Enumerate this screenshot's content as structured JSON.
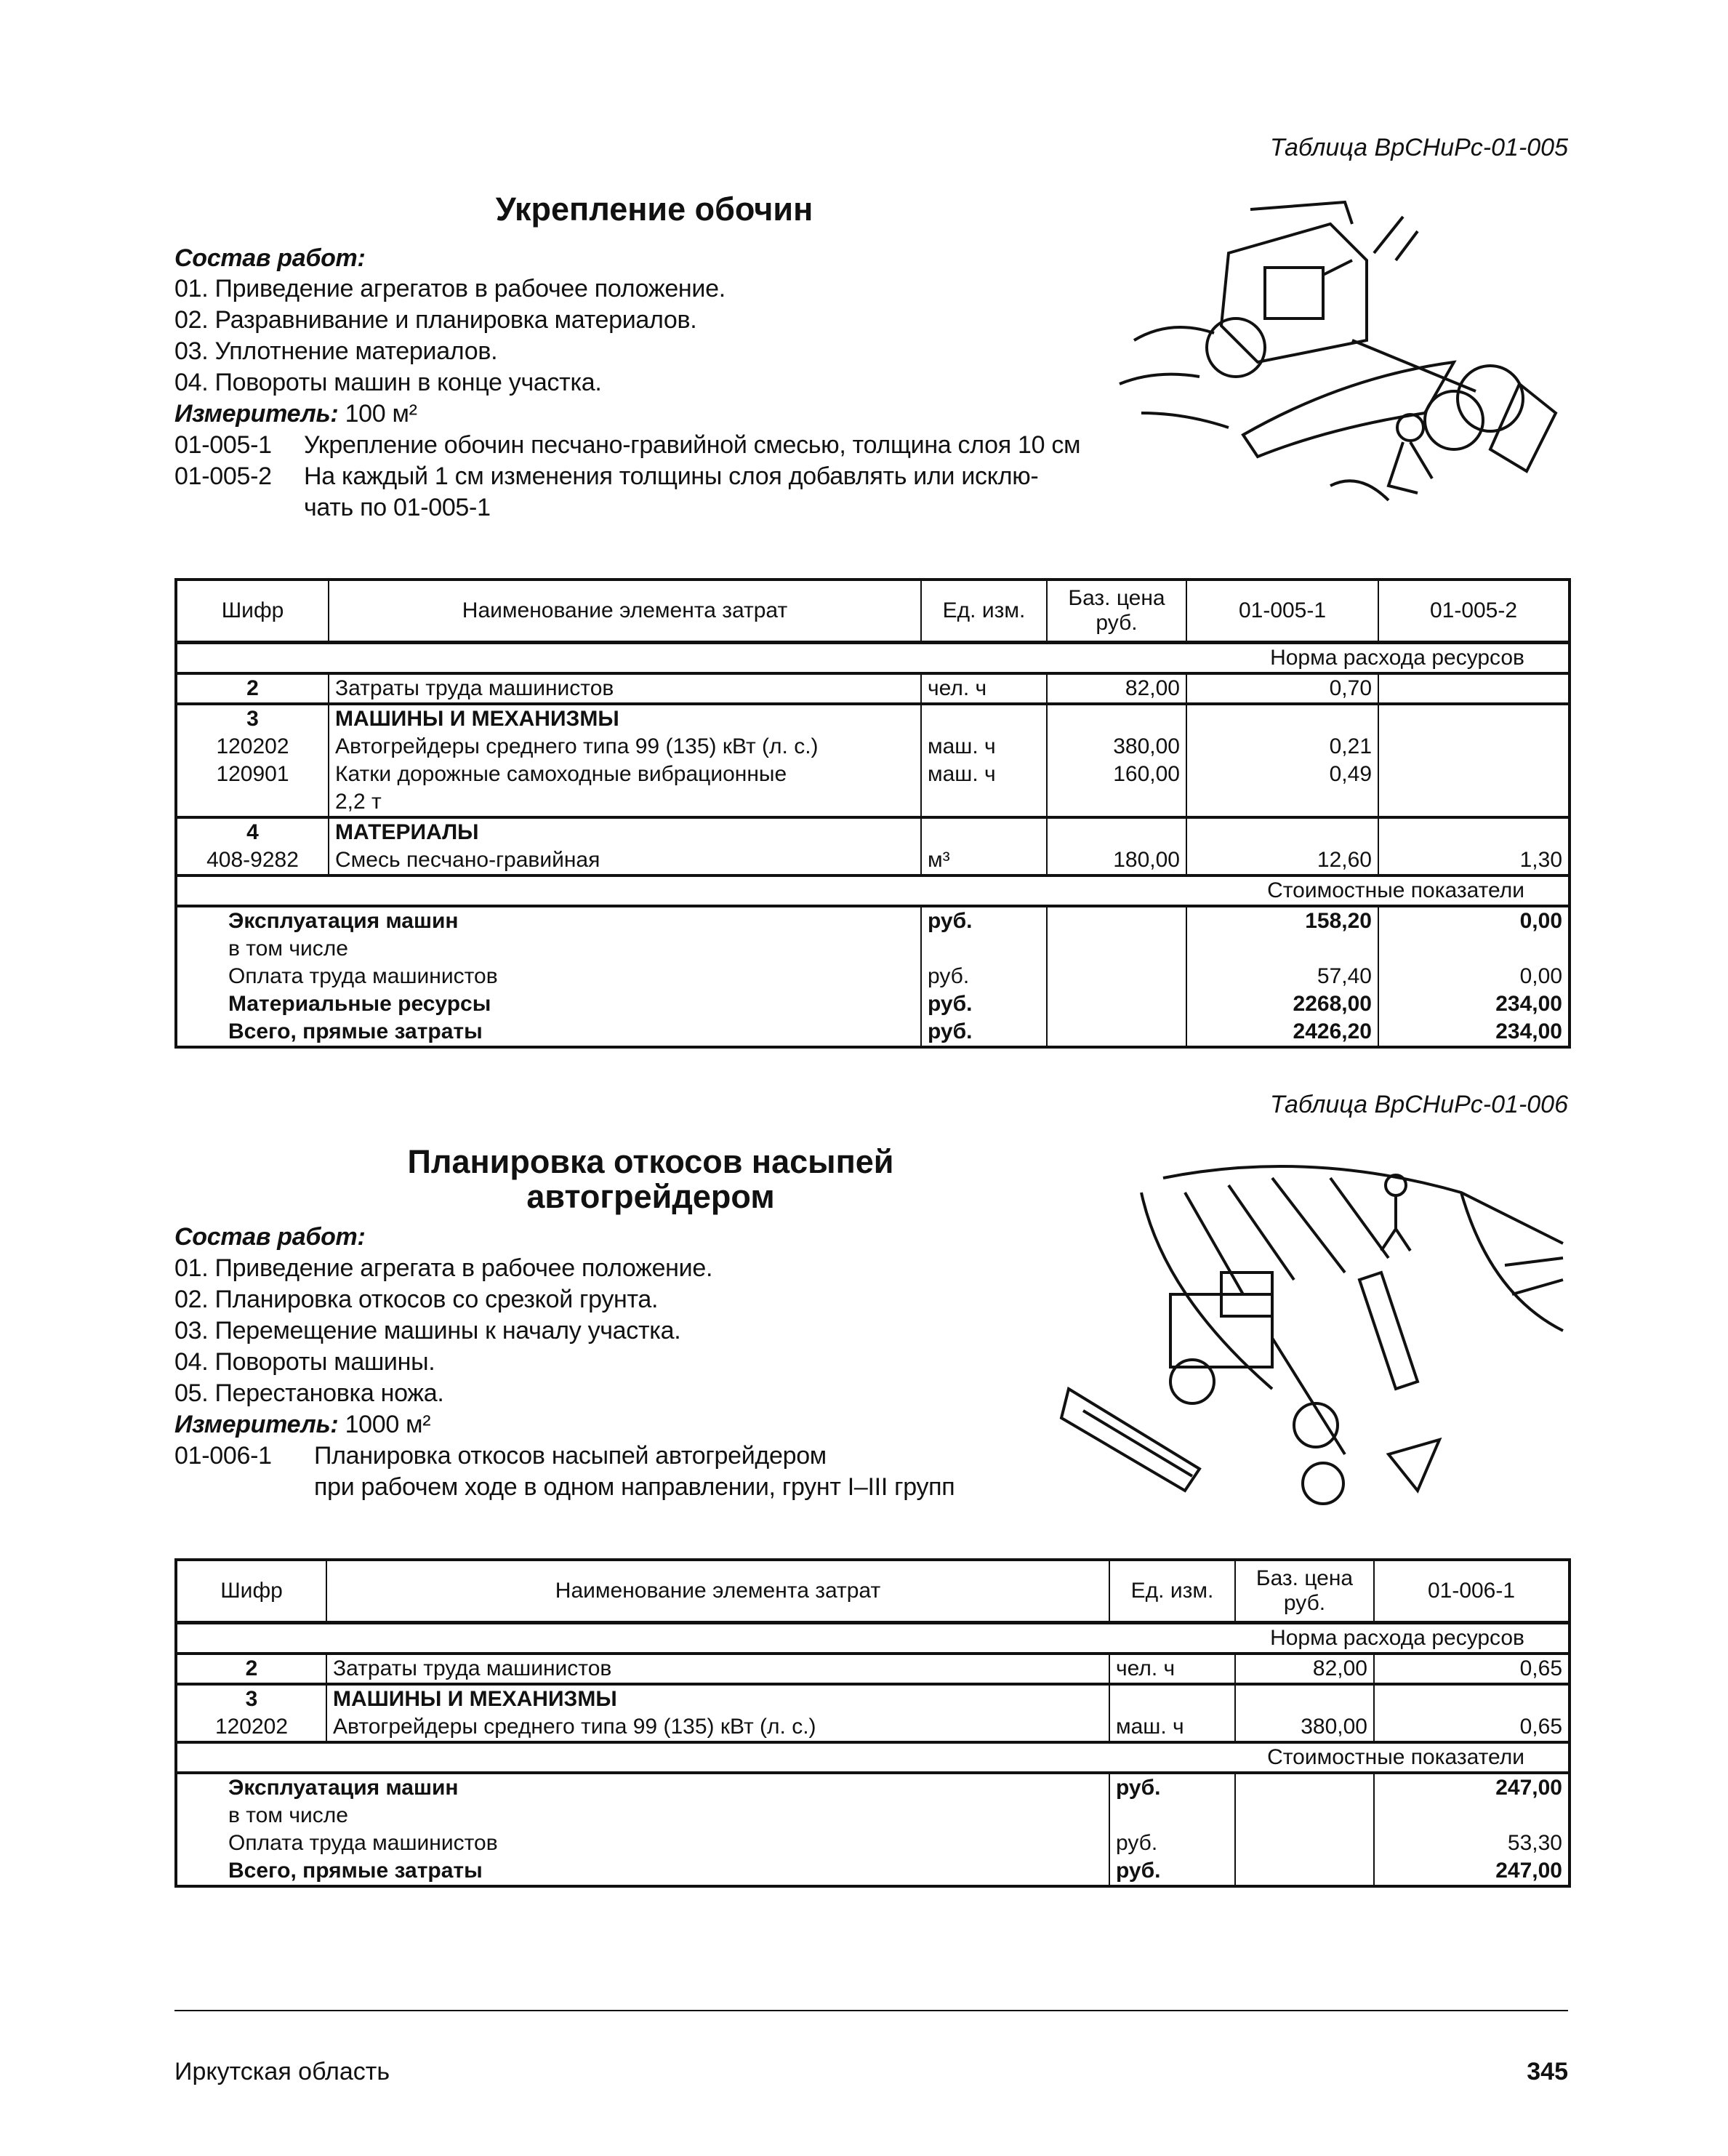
{
  "section1": {
    "table_ref": "Таблица ВрСНиРс-01-005",
    "title": "Укрепление обочин",
    "work_label": "Состав работ:",
    "works": [
      "01. Приведение агрегатов в рабочее положение.",
      "02. Разравнивание и планировка материалов.",
      "03. Уплотнение материалов.",
      "04. Повороты машин в конце участка."
    ],
    "meter_label": "Измеритель:",
    "meter_value": " 100 м²",
    "items": [
      {
        "code": "01-005-1",
        "text": "Укрепление обочин песчано-гравийной смесью, толщина слоя 10 см"
      },
      {
        "code": "01-005-2",
        "text": "На каждый 1 см изменения толщины слоя добавлять или исклю-",
        "cont": "чать по 01-005-1"
      }
    ],
    "illustration": "autograder-with-roller-icon"
  },
  "table1": {
    "headers": [
      "Шифр",
      "Наименование элемента затрат",
      "Ед. изм.",
      "Баз. цена руб.",
      "01-005-1",
      "01-005-2"
    ],
    "norm_label": "Норма расхода ресурсов",
    "cost_label": "Стоимостные показатели",
    "groups": [
      [
        {
          "code": "2",
          "name": "Затраты труда машинистов",
          "unit": "чел. ч",
          "price": "82,00",
          "v": [
            "0,70",
            ""
          ],
          "boldcode": true
        }
      ],
      [
        {
          "code": "3",
          "name": "МАШИНЫ И МЕХАНИЗМЫ",
          "bold": true,
          "boldcode": true
        },
        {
          "code": "120202",
          "name": "Автогрейдеры среднего типа 99 (135) кВт (л. с.)",
          "unit": "маш. ч",
          "price": "380,00",
          "v": [
            "0,21",
            ""
          ]
        },
        {
          "code": "120901",
          "name": "Катки дорожные самоходные вибрационные",
          "unit": "маш. ч",
          "price": "160,00",
          "v": [
            "0,49",
            ""
          ]
        },
        {
          "code": "",
          "name": "2,2 т"
        }
      ],
      [
        {
          "code": "4",
          "name": "МАТЕРИАЛЫ",
          "bold": true,
          "boldcode": true
        },
        {
          "code": "408-9282",
          "name": "Смесь песчано-гравийная",
          "unit": "м³",
          "price": "180,00",
          "v": [
            "12,60",
            "1,30"
          ]
        }
      ]
    ],
    "summary": [
      {
        "label": "Эксплуатация машин",
        "unit": "руб.",
        "v": [
          "158,20",
          "0,00"
        ],
        "bold": true
      },
      {
        "label": "в том числе",
        "unit": "",
        "v": [
          "",
          ""
        ]
      },
      {
        "label": "Оплата труда машинистов",
        "unit": "руб.",
        "v": [
          "57,40",
          "0,00"
        ]
      },
      {
        "label": "Материальные ресурсы",
        "unit": "руб.",
        "v": [
          "2268,00",
          "234,00"
        ],
        "bold": true
      },
      {
        "label": "Всего, прямые затраты",
        "unit": "руб.",
        "v": [
          "2426,20",
          "234,00"
        ],
        "bold": true
      }
    ]
  },
  "section2": {
    "table_ref": "Таблица ВрСНиРс-01-006",
    "title_lines": [
      "Планировка откосов насыпей",
      "автогрейдером"
    ],
    "work_label": "Состав работ:",
    "works": [
      "01. Приведение агрегата в рабочее положение.",
      "02. Планировка откосов со срезкой грунта.",
      "03. Перемещение машины к началу участка.",
      "04. Повороты машины.",
      "05. Перестановка ножа."
    ],
    "meter_label": "Измеритель:",
    "meter_value": " 1000 м²",
    "items": [
      {
        "code": "01-006-1",
        "text": "Планировка откосов насыпей автогрейдером",
        "cont": "при рабочем ходе в одном направлении, грунт I–III групп"
      }
    ],
    "illustration": "autograder-on-slope-icon"
  },
  "table2": {
    "headers": [
      "Шифр",
      "Наименование элемента затрат",
      "Ед. изм.",
      "Баз. цена руб.",
      "01-006-1"
    ],
    "norm_label": "Норма расхода ресурсов",
    "cost_label": "Стоимостные показатели",
    "groups": [
      [
        {
          "code": "2",
          "name": "Затраты труда машинистов",
          "unit": "чел. ч",
          "price": "82,00",
          "v": [
            "0,65"
          ],
          "boldcode": true
        }
      ],
      [
        {
          "code": "3",
          "name": "МАШИНЫ И МЕХАНИЗМЫ",
          "bold": true,
          "boldcode": true
        },
        {
          "code": "120202",
          "name": "Автогрейдеры среднего типа 99 (135) кВт (л. с.)",
          "unit": "маш. ч",
          "price": "380,00",
          "v": [
            "0,65"
          ]
        }
      ]
    ],
    "summary": [
      {
        "label": "Эксплуатация машин",
        "unit": "руб.",
        "v": [
          "247,00"
        ],
        "bold": true
      },
      {
        "label": "в том числе",
        "unit": "",
        "v": [
          ""
        ]
      },
      {
        "label": "Оплата труда машинистов",
        "unit": "руб.",
        "v": [
          "53,30"
        ]
      },
      {
        "label": "Всего, прямые затраты",
        "unit": "руб.",
        "v": [
          "247,00"
        ],
        "bold": true
      }
    ]
  },
  "footer": {
    "region": "Иркутская область",
    "page": "345"
  }
}
